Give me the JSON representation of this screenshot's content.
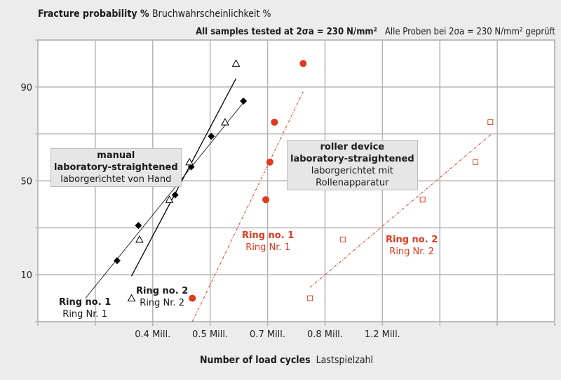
{
  "chart_data": {
    "type": "scatter",
    "title": "Fracture probability %",
    "title_de": "Bruchwahrscheinlichkeit %",
    "subtitle_en": "All samples tested at 2σa = 230 N/mm²",
    "subtitle_de": "Alle Proben bei 2σa = 230 N/mm² geprüft",
    "xlabel": "Number of load cycles",
    "xlabel_de": "Lastspielzahl",
    "ylabel": "Fracture probability %",
    "x_gridlines": 10,
    "x_ticks": [
      {
        "pos": 2,
        "label": "0.4 Mill."
      },
      {
        "pos": 3,
        "label": "0.5 Mill."
      },
      {
        "pos": 4,
        "label": "0.7 Mill."
      },
      {
        "pos": 5,
        "label": "0.8 Mill."
      },
      {
        "pos": 6,
        "label": "1.2 Mill."
      }
    ],
    "xlim": [
      0,
      9
    ],
    "y_ticks": [
      {
        "value": 90,
        "label": "90"
      },
      {
        "value": 50,
        "label": "50"
      },
      {
        "value": 10,
        "label": "10"
      }
    ],
    "y_gridlines": [
      110,
      90,
      70,
      50,
      30,
      10,
      -10
    ],
    "ylim": [
      -10,
      110
    ],
    "grid": true,
    "series": [
      {
        "name": "manual Ring no. 1",
        "marker": "diamond",
        "color": "#000000",
        "points": [
          [
            1.38,
            16
          ],
          [
            1.75,
            31
          ],
          [
            2.39,
            44
          ],
          [
            2.67,
            56
          ],
          [
            3.02,
            69
          ],
          [
            3.58,
            84
          ]
        ],
        "fit": [
          [
            0.83,
            0
          ],
          [
            3.6,
            84
          ]
        ],
        "fit_style": "thin"
      },
      {
        "name": "manual Ring no. 2",
        "marker": "triangle-open",
        "color": "#000000",
        "points": [
          [
            1.63,
            0
          ],
          [
            1.77,
            25
          ],
          [
            2.29,
            42
          ],
          [
            2.64,
            58
          ],
          [
            3.26,
            75
          ],
          [
            3.45,
            100
          ]
        ],
        "fit": [
          [
            1.63,
            9.4
          ],
          [
            3.45,
            93.6
          ]
        ],
        "fit_style": "solid"
      },
      {
        "name": "roller Ring no. 1",
        "marker": "circle",
        "color": "#e03a1e",
        "points": [
          [
            2.69,
            0
          ],
          [
            3.97,
            42
          ],
          [
            4.04,
            58
          ],
          [
            4.12,
            75
          ],
          [
            4.62,
            100
          ]
        ],
        "fit": [
          [
            2.69,
            -10
          ],
          [
            4.62,
            88
          ]
        ],
        "fit_style": "dashdot"
      },
      {
        "name": "roller Ring no. 2",
        "marker": "square-open",
        "color": "#e03a1e",
        "points": [
          [
            4.74,
            0
          ],
          [
            5.31,
            25
          ],
          [
            6.7,
            42
          ],
          [
            7.62,
            58
          ],
          [
            7.88,
            75
          ]
        ],
        "fit": [
          [
            4.74,
            4.6
          ],
          [
            7.9,
            70
          ]
        ],
        "fit_style": "dashdot"
      }
    ],
    "annotations": {
      "manual_box": [
        "manual",
        "laboratory-straightened",
        "laborgerichtet von Hand"
      ],
      "roller_box": [
        "roller device",
        "laboratory-straightened",
        "laborgerichtet mit",
        "Rollenapparatur"
      ],
      "ring1_black": [
        "Ring no. 1",
        "Ring Nr. 1"
      ],
      "ring2_black": [
        "Ring no. 2",
        "Ring Nr. 2"
      ],
      "ring1_red": [
        "Ring no. 1",
        "Ring Nr. 1"
      ],
      "ring2_red": [
        "Ring no. 2",
        "Ring Nr. 2"
      ]
    }
  }
}
